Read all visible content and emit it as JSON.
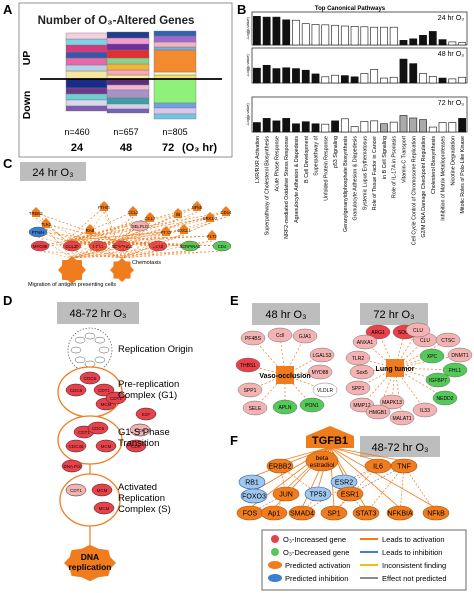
{
  "panelA": {
    "letter": "A",
    "title": "Number of O₃-Altered Genes",
    "up_label": "UP",
    "down_label": "Down",
    "counts": [
      "n=460",
      "n=657",
      "n=805"
    ],
    "x_ticks": [
      "24",
      "48",
      "72"
    ],
    "x_unit": "(O₃ hr)"
  },
  "panelB": {
    "letter": "B",
    "title": "Top Canonical Pathways",
    "ylabel": "-Log(p-value)",
    "tags": [
      "24 hr O₃",
      "48 hr O₃",
      "72 hr O₃"
    ],
    "pathways": [
      "LXR/RXR Activation",
      "Superpathway of Cholesterol Biosynthesis",
      "Acute Phase Response",
      "NRF2-mediated Oxidative Stress Response",
      "Agranulocyte Adhesion & Diapedesis",
      "B Cell Development",
      "Superpathway of",
      "Unfolded Protein Response",
      "p53 Signaling",
      "Geranylgeranyldiphosphate Biosynthesis",
      "Granulocyte Adhesion & Diapedesis",
      "Systemic Lupus Erythematosus",
      "Role of Tissue Factor in Cancer",
      "in B Cell Signaling",
      "Role of IL-17A in Psoriasis",
      "Vitamin-C Transport",
      "Cell Cycle Control of Chromosome Replication",
      "G2/M DNA Damage Checkpoint Regulation",
      "Cholesterol Biosynthesis",
      "Inhibition of Matrix Metalloproteases",
      "Nicotine Degradation",
      "Mitotic Roles of Polo-Like Kinase"
    ]
  },
  "panelC": {
    "letter": "C",
    "tag": "24 hr O₃",
    "outputs": [
      "Migration of antigen presenting cells",
      "Chemotaxis"
    ],
    "genes": [
      "TREM1",
      "TLR2",
      "FTH/E",
      "CCL2",
      "CCL7",
      "Il6",
      "NFkB",
      "ERK1/2",
      "CD14",
      "PTN/H",
      "MYC68",
      "CCL20",
      "CCL3",
      "SERPINE1",
      "CCL5",
      "SERPINA3",
      "FLT3",
      "CD4",
      "SELPLG",
      "PTX3",
      "CXCL1",
      "RAB"
    ]
  },
  "panelD": {
    "letter": "D",
    "tag": "48-72 hr O₃",
    "stages": [
      "Replication Origin",
      "Pre-replication Complex (G1)",
      "G1-S Phase Transition",
      "Activated Replication Complex (S)"
    ],
    "stage_lines": [
      [
        "Replication Origin"
      ],
      [
        "Pre-replication",
        "Complex (G1)"
      ],
      [
        "G1-S Phase",
        "Transition"
      ],
      [
        "Activated",
        "Replication",
        "Complex (S)"
      ]
    ],
    "genes": [
      "CDC6",
      "CDT1",
      "MCM",
      "CDT1",
      "CDC6",
      "CDT1",
      "MCM",
      "CDC6",
      "CDC45",
      "DNA Pol",
      "MCM",
      "CDT1",
      "MCM",
      "E2F",
      "CDK",
      "CDK"
    ],
    "output": "DNA replication",
    "output_lines": [
      "DNA",
      "replication"
    ]
  },
  "panelE": {
    "letter": "E",
    "tag48": "48 hr O₃",
    "tag72": "72 hr O₃",
    "hub48": "Vaso-occlusion",
    "hub72": "Lung tumor",
    "genes48": [
      "PF4BS",
      "Ccll",
      "GJA1",
      "THBS1",
      "LGALS3",
      "MYD88",
      "SPP1",
      "SELE",
      "APLN",
      "PON1",
      "VLDLR"
    ],
    "genes72": [
      "ARG1",
      "SOCS",
      "CLU",
      "CTSC",
      "DNMT1",
      "ANXA1",
      "TLR2",
      "XPC",
      "FHL1",
      "Sox5",
      "IGFBP7",
      "SPP1",
      "MAPK13",
      "NEDD2",
      "MMP12",
      "HMGB1",
      "IL33",
      "MALAT1",
      "CLU"
    ]
  },
  "panelF": {
    "letter": "F",
    "tag": "48-72 hr O₃",
    "top_gene": "TGFB1",
    "genes": [
      "beta estradiol",
      "ERBB2",
      "IL6",
      "TNF",
      "RB1",
      "ESR2",
      "FOXO3",
      "JUN",
      "TP53",
      "ESR1",
      "FOS",
      "Ap1",
      "SMAD4",
      "SP1",
      "STAT3",
      "NFKBIA",
      "NFkB"
    ],
    "beta_lines": [
      "beta",
      "estradiol"
    ],
    "legend": {
      "increased": "O₃-Increased gene",
      "decreased": "O₃-Decreased gene",
      "pred_activation": "Predicted activation",
      "pred_inhibition": "Predicted inhibition",
      "leads_activation": "Leads to activation",
      "leads_inhibition": "Leads to inhibition",
      "inconsistent": "Inconsistent finding",
      "not_predicted": "Effect not predicted"
    },
    "legend_colors": {
      "increased": "#e8414a",
      "decreased": "#55c85a",
      "activation": "#f07c1e",
      "inhibition": "#3b7fd0",
      "inconsistent": "#f2c200",
      "not_predicted": "#8a8a8a"
    }
  }
}
